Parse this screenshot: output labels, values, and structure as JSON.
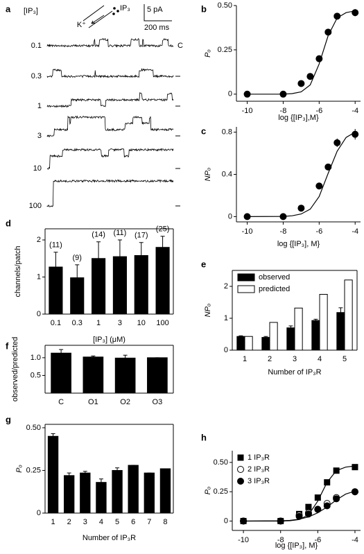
{
  "chart_data": [
    {
      "panel": "a",
      "type": "traces",
      "title": "[IP₃]",
      "categories": [
        "0.1",
        "0.3",
        "1",
        "3",
        "10",
        "100"
      ],
      "closed_label": "C",
      "annotations": [
        "IP₃",
        "K⁺",
        "5 pA",
        "200 ms"
      ]
    },
    {
      "panel": "b",
      "type": "scatter",
      "xlabel": "log {[IP₃],M}",
      "ylabel": "Pₒ",
      "xlim": [
        -10.6,
        -3.7
      ],
      "xticks": [
        -10,
        -8,
        -6,
        -4
      ],
      "ylim": [
        -0.04,
        0.5
      ],
      "yticks": [
        0,
        0.25,
        {
          "value": 0.5,
          "label": "0.50"
        }
      ],
      "series": [
        {
          "x": [
            -10,
            -8,
            -7,
            -6.5,
            -6,
            -5.5,
            -5,
            -4
          ],
          "values": [
            0,
            0,
            0.06,
            0.1,
            0.2,
            0.35,
            0.44,
            0.46
          ],
          "errors": [
            0,
            0,
            0.01,
            0.01,
            0.01,
            0.015,
            0.015,
            0.02
          ],
          "color": "#000000",
          "marker": "circle"
        }
      ],
      "fits": [
        {
          "x": [
            -10,
            -8,
            -7.5,
            -7,
            -6.5,
            -6,
            -5.5,
            -5,
            -4.5,
            -4
          ],
          "values": [
            0,
            0,
            0.003,
            0.013,
            0.052,
            0.17,
            0.33,
            0.43,
            0.46,
            0.47
          ]
        }
      ]
    },
    {
      "panel": "c",
      "type": "scatter",
      "xlabel": "log {[IP₃], M}",
      "ylabel": "NPₒ",
      "xlim": [
        -10.6,
        -3.7
      ],
      "xticks": [
        -10,
        -8,
        -6,
        -4
      ],
      "ylim": [
        -0.05,
        0.85
      ],
      "yticks": [
        0,
        0.4,
        0.8
      ],
      "series": [
        {
          "x": [
            -10,
            -8,
            -7,
            -6,
            -5.5,
            -5,
            -4
          ],
          "values": [
            0,
            0,
            0.08,
            0.29,
            0.47,
            0.7,
            0.78
          ],
          "errors": [
            0,
            0,
            0.01,
            0.03,
            0.03,
            0.04,
            0.05
          ],
          "color": "#000000",
          "marker": "circle"
        }
      ],
      "fits": [
        {
          "x": [
            -10,
            -8,
            -7.5,
            -7,
            -6.5,
            -6,
            -5.5,
            -5,
            -4.5,
            -4
          ],
          "values": [
            0,
            0.002,
            0.008,
            0.025,
            0.07,
            0.19,
            0.41,
            0.62,
            0.75,
            0.8
          ]
        }
      ]
    },
    {
      "panel": "d",
      "type": "bar",
      "xlabel": "[IP₃] (μM)",
      "ylabel": "channels/patch",
      "categories": [
        "0.1",
        "0.3",
        "1",
        "3",
        "10",
        "100"
      ],
      "values": [
        1.27,
        0.98,
        1.5,
        1.55,
        1.58,
        1.8
      ],
      "errors": [
        0.4,
        0.35,
        0.45,
        0.45,
        0.35,
        0.3
      ],
      "annotations": [
        "(11)",
        "(9)",
        "(14)",
        "(11)",
        "(17)",
        "(25)"
      ],
      "color": "#000000",
      "ylim": [
        0,
        2.3
      ],
      "yticks": [
        0,
        1,
        2
      ],
      "frame": true
    },
    {
      "panel": "e",
      "type": "bar",
      "xlabel": "Number of IP₃R",
      "ylabel": "NPₒ",
      "categories": [
        "1",
        "2",
        "3",
        "4",
        "5"
      ],
      "series": [
        {
          "name": "observed",
          "color": "#000000",
          "values": [
            0.43,
            0.4,
            0.7,
            0.93,
            1.18
          ],
          "errors": [
            0.02,
            0.03,
            0.06,
            0.04,
            0.15
          ]
        },
        {
          "name": "predicted",
          "color": "#ffffff",
          "values": [
            0.43,
            0.87,
            1.32,
            1.75,
            2.2
          ]
        }
      ],
      "ylim": [
        0,
        2.5
      ],
      "yticks": [
        0,
        1,
        2
      ],
      "legend": "upper left",
      "frame": true
    },
    {
      "panel": "f",
      "type": "bar",
      "ylabel": "observed/predicted",
      "categories": [
        "C",
        "O1",
        "O2",
        "O3"
      ],
      "values": [
        1.13,
        1.02,
        0.99,
        1.0
      ],
      "errors": [
        0.1,
        0.03,
        0.08,
        0
      ],
      "color": "#000000",
      "ylim": [
        0,
        1.35
      ],
      "yticks": [
        0.5,
        {
          "value": 1,
          "label": "1.0"
        }
      ],
      "frame": true
    },
    {
      "panel": "g",
      "type": "bar",
      "xlabel": "Number of IP₃R",
      "ylabel": "Pₒ",
      "categories": [
        "1",
        "2",
        "3",
        "4",
        "5",
        "6",
        "7",
        "8"
      ],
      "values": [
        0.45,
        0.22,
        0.235,
        0.18,
        0.25,
        0.28,
        0.235,
        0.26
      ],
      "errors": [
        0.015,
        0.015,
        0.01,
        0.02,
        0.015,
        0,
        0,
        0
      ],
      "color": "#000000",
      "ylim": [
        0,
        0.52
      ],
      "yticks": [
        0,
        0.25,
        {
          "value": 0.5,
          "label": "0.50"
        }
      ],
      "frame": true
    },
    {
      "panel": "h",
      "type": "scatter",
      "xlabel": "log {[IP₃], M}",
      "ylabel": "Pₒ",
      "xlim": [
        -10.6,
        -3.7
      ],
      "xticks": [
        -10,
        -8,
        -6,
        -4
      ],
      "ylim": [
        -0.08,
        0.6
      ],
      "yticks": [
        0,
        0.25,
        {
          "value": 0.5,
          "label": "0.50"
        }
      ],
      "legend": "upper left",
      "series": [
        {
          "name": "1 IP₃R",
          "marker": "square",
          "color": "#000000",
          "x": [
            -10,
            -8,
            -7,
            -6.5,
            -6,
            -5.5,
            -5,
            -4
          ],
          "values": [
            0,
            0,
            0.06,
            0.12,
            0.2,
            0.33,
            0.43,
            0.46
          ]
        },
        {
          "name": "2 IP₃R",
          "marker": "circle",
          "color": "#ffffff",
          "x": [
            -10,
            -8,
            -7,
            -6.5,
            -6,
            -5.5,
            -5,
            -4
          ],
          "values": [
            0,
            0,
            0.05,
            0.07,
            0.1,
            0.15,
            0.2,
            0.25
          ]
        },
        {
          "name": "3 IP₃R",
          "marker": "circle",
          "color": "#000000",
          "x": [
            -10,
            -8,
            -7,
            -6.5,
            -6,
            -5.5,
            -5,
            -4
          ],
          "values": [
            0,
            0,
            0.04,
            0.06,
            0.1,
            0.13,
            0.19,
            0.25
          ]
        }
      ],
      "fits": [
        {
          "x": [
            -10,
            -8,
            -7.5,
            -7,
            -6.5,
            -6,
            -5.5,
            -5,
            -4.5,
            -4
          ],
          "values": [
            0,
            0,
            0.003,
            0.013,
            0.052,
            0.17,
            0.33,
            0.43,
            0.46,
            0.47
          ]
        },
        {
          "x": [
            -10,
            -8,
            -7.5,
            -7,
            -6.5,
            -6,
            -5.5,
            -5,
            -4.5,
            -4
          ],
          "values": [
            0,
            0.002,
            0.006,
            0.016,
            0.035,
            0.07,
            0.12,
            0.18,
            0.23,
            0.255
          ]
        }
      ]
    }
  ]
}
